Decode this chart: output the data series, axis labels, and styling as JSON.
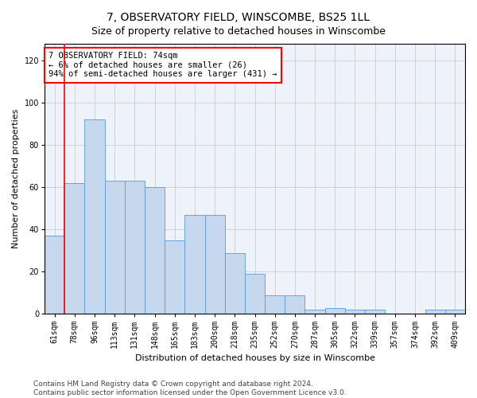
{
  "title1": "7, OBSERVATORY FIELD, WINSCOMBE, BS25 1LL",
  "title2": "Size of property relative to detached houses in Winscombe",
  "xlabel": "Distribution of detached houses by size in Winscombe",
  "ylabel": "Number of detached properties",
  "categories": [
    "61sqm",
    "78sqm",
    "96sqm",
    "113sqm",
    "131sqm",
    "148sqm",
    "165sqm",
    "183sqm",
    "200sqm",
    "218sqm",
    "235sqm",
    "252sqm",
    "270sqm",
    "287sqm",
    "305sqm",
    "322sqm",
    "339sqm",
    "357sqm",
    "374sqm",
    "392sqm",
    "409sqm"
  ],
  "values": [
    37,
    62,
    92,
    63,
    63,
    60,
    35,
    47,
    47,
    29,
    19,
    9,
    9,
    2,
    3,
    2,
    2,
    0,
    0,
    2,
    2
  ],
  "bar_color": "#c5d8ee",
  "bar_edgecolor": "#5b9bd5",
  "annotation_text": "7 OBSERVATORY FIELD: 74sqm\n← 6% of detached houses are smaller (26)\n94% of semi-detached houses are larger (431) →",
  "annotation_box_color": "white",
  "annotation_box_edgecolor": "red",
  "ylim": [
    0,
    128
  ],
  "yticks": [
    0,
    20,
    40,
    60,
    80,
    100,
    120
  ],
  "grid_color": "#cccccc",
  "bg_color": "#eef2fa",
  "footer": "Contains HM Land Registry data © Crown copyright and database right 2024.\nContains public sector information licensed under the Open Government Licence v3.0.",
  "red_line_x": 0.5,
  "title1_fontsize": 10,
  "title2_fontsize": 9,
  "xlabel_fontsize": 8,
  "ylabel_fontsize": 8,
  "tick_fontsize": 7,
  "annotation_fontsize": 7.5,
  "footer_fontsize": 6.5
}
